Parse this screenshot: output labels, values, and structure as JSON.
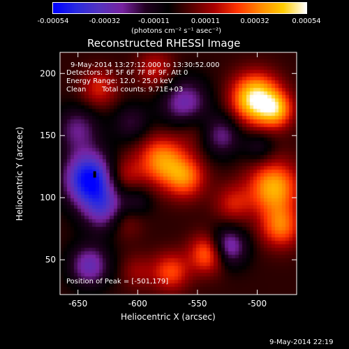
{
  "chart_data": {
    "type": "heatmap",
    "title": "Reconstructed RHESSI Image",
    "xlabel": "Heliocentric X (arcsec)",
    "ylabel": "Heliocentric Y (arcsec)",
    "xlim": [
      -665,
      -467
    ],
    "ylim": [
      22,
      217
    ],
    "x_ticks": [
      -650,
      -600,
      -550,
      -500
    ],
    "y_ticks": [
      50,
      100,
      150,
      200
    ],
    "x_tick_labels": [
      "-650",
      "-600",
      "-550",
      "-500"
    ],
    "y_tick_labels": [
      "50",
      "100",
      "150",
      "200"
    ],
    "colorbar": {
      "label": "(photons cm⁻² s⁻¹ asec⁻²)",
      "min": -0.00054,
      "max": 0.00054,
      "ticks": [
        -0.00054,
        -0.00032,
        -0.00011,
        0.00011,
        0.00032,
        0.00054
      ],
      "tick_labels": [
        "-0.00054",
        "-0.00032",
        "-0.00011",
        "0.00011",
        "0.00032",
        "0.00054"
      ],
      "colormap": [
        "#0000ff",
        "#2a2ae0",
        "#5533c0",
        "#7722a0",
        "#220022",
        "#000000",
        "#550000",
        "#aa0000",
        "#ff3300",
        "#ff8800",
        "#ffcc00",
        "#ffffff"
      ]
    },
    "sources": [
      {
        "x": -501,
        "y": 179,
        "amp": 0.00054,
        "sigma": 14
      },
      {
        "x": -483,
        "y": 170,
        "amp": 0.0003,
        "sigma": 10
      },
      {
        "x": -580,
        "y": 130,
        "amp": 0.00034,
        "sigma": 14
      },
      {
        "x": -560,
        "y": 116,
        "amp": 0.0003,
        "sigma": 12
      },
      {
        "x": -612,
        "y": 118,
        "amp": 0.00018,
        "sigma": 11
      },
      {
        "x": -486,
        "y": 108,
        "amp": 0.0004,
        "sigma": 15
      },
      {
        "x": -480,
        "y": 76,
        "amp": 0.0003,
        "sigma": 12
      },
      {
        "x": -520,
        "y": 95,
        "amp": 0.00018,
        "sigma": 11
      },
      {
        "x": -540,
        "y": 55,
        "amp": 0.00036,
        "sigma": 11
      },
      {
        "x": -572,
        "y": 40,
        "amp": 0.00026,
        "sigma": 11
      },
      {
        "x": -610,
        "y": 80,
        "amp": 0.00012,
        "sigma": 10
      },
      {
        "x": -600,
        "y": 40,
        "amp": 0.00012,
        "sigma": 10
      },
      {
        "x": -632,
        "y": 188,
        "amp": 0.0002,
        "sigma": 11
      },
      {
        "x": -585,
        "y": 203,
        "amp": 0.00018,
        "sigma": 11
      },
      {
        "x": -552,
        "y": 156,
        "amp": 0.00012,
        "sigma": 12
      },
      {
        "x": -640,
        "y": 115,
        "amp": -0.00054,
        "sigma": 15
      },
      {
        "x": -628,
        "y": 90,
        "amp": -0.00028,
        "sigma": 13
      },
      {
        "x": -525,
        "y": 60,
        "amp": -0.00036,
        "sigma": 11
      },
      {
        "x": -560,
        "y": 175,
        "amp": -0.0003,
        "sigma": 14
      },
      {
        "x": -530,
        "y": 150,
        "amp": -0.00024,
        "sigma": 12
      },
      {
        "x": -650,
        "y": 155,
        "amp": -0.00022,
        "sigma": 13
      },
      {
        "x": -640,
        "y": 45,
        "amp": -0.0003,
        "sigma": 12
      },
      {
        "x": -605,
        "y": 160,
        "amp": -0.00016,
        "sigma": 11
      },
      {
        "x": -498,
        "y": 140,
        "amp": -0.00014,
        "sigma": 9
      },
      {
        "x": -600,
        "y": 97,
        "amp": -0.00012,
        "sigma": 9
      }
    ],
    "peak": {
      "x": -501,
      "y": 179
    },
    "marker": {
      "x": -636,
      "y": 119
    }
  },
  "annotations": {
    "time_range": "9-May-2014 13:27:12.000 to 13:30:52.000",
    "detectors": "Detectors: 3F 5F 6F 7F 8F 9F, Att 0",
    "energy": "Energy Range: 12.0 - 25.0 keV",
    "clean": "Clean",
    "counts": "Total counts: 9.71E+03",
    "peak_label": "Position of Peak = [-501,179]",
    "footer_timestamp": "9-May-2014 22:19"
  },
  "colors": {
    "background": "#000000",
    "foreground": "#ffffff"
  }
}
